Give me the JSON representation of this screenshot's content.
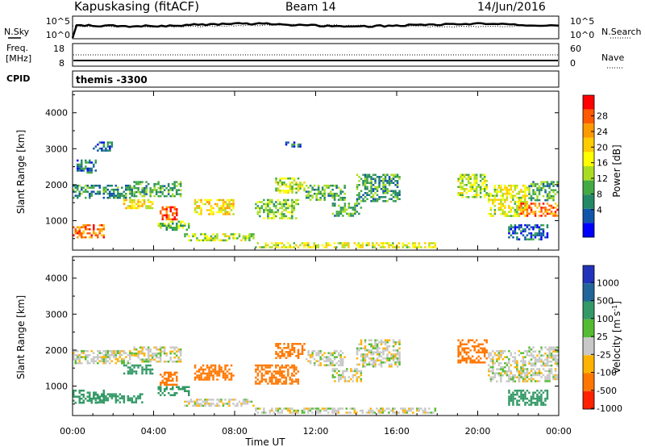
{
  "header": {
    "station": "Kapuskasing (fitACF)",
    "beam": "Beam 14",
    "date": "14/Jun/2016"
  },
  "noise_panel": {
    "left_label": "N.Sky",
    "right_label": "N.Search",
    "left_ticks": [
      "10^5",
      "10^0"
    ],
    "right_ticks": [
      "10^5",
      "10^0"
    ]
  },
  "freq_panel": {
    "left_label_1": "Freq.",
    "left_label_2": "[MHz]",
    "left_ticks": [
      "18",
      "8"
    ],
    "right_label": "Nave",
    "right_ticks": [
      "60",
      "0"
    ]
  },
  "cpid": {
    "label": "CPID",
    "value": "themis -3300"
  },
  "x_axis": {
    "label": "Time UT",
    "ticks": [
      "00:00",
      "04:00",
      "08:00",
      "12:00",
      "16:00",
      "20:00",
      "00:00"
    ]
  },
  "power_colorbar": {
    "label": "Power [dB]",
    "ticks": [
      "28",
      "24",
      "20",
      "16",
      "12",
      "8",
      "4"
    ],
    "colors": [
      "#ff0000",
      "#ff5a00",
      "#ff9900",
      "#ffcc00",
      "#ffff00",
      "#aadd22",
      "#44aa44",
      "#228866",
      "#1155aa",
      "#0000ff"
    ]
  },
  "velocity_colorbar": {
    "label": "Velocity [m s",
    "label_sup": "-1",
    "label_end": "]",
    "ticks": [
      "1000",
      "500",
      "100",
      "25",
      "-25",
      "-100",
      "-500",
      "-1000"
    ],
    "colors": [
      "#2233bb",
      "#226699",
      "#339966",
      "#55bb33",
      "#c8c8c8",
      "#ffb300",
      "#ff7700",
      "#ff2200"
    ]
  },
  "chart_data": [
    {
      "type": "heatmap",
      "title": "",
      "xlabel": "Time UT",
      "ylabel": "Slant Range [km]",
      "xlim": [
        0,
        24
      ],
      "ylim": [
        180,
        4600
      ],
      "yticks": [
        1000,
        2000,
        3000,
        4000
      ],
      "colorbar": "Power [dB]",
      "clim": [
        0,
        30
      ],
      "regions": [
        {
          "t0": 0.0,
          "t1": 1.6,
          "r0": 500,
          "r1": 900,
          "value": 24
        },
        {
          "t0": 0.0,
          "t1": 3.0,
          "r0": 1600,
          "r1": 2000,
          "value": 8
        },
        {
          "t0": 0.2,
          "t1": 1.2,
          "r0": 2300,
          "r1": 2700,
          "value": 6
        },
        {
          "t0": 1.0,
          "t1": 2.0,
          "r0": 2900,
          "r1": 3200,
          "value": 5
        },
        {
          "t0": 2.5,
          "t1": 4.0,
          "r0": 1300,
          "r1": 1600,
          "value": 18
        },
        {
          "t0": 3.0,
          "t1": 5.4,
          "r0": 1600,
          "r1": 2100,
          "value": 10
        },
        {
          "t0": 4.3,
          "t1": 5.2,
          "r0": 1000,
          "r1": 1400,
          "value": 26
        },
        {
          "t0": 4.2,
          "t1": 5.8,
          "r0": 700,
          "r1": 1000,
          "value": 12
        },
        {
          "t0": 6.0,
          "t1": 8.0,
          "r0": 1100,
          "r1": 1600,
          "value": 18
        },
        {
          "t0": 5.5,
          "t1": 9.0,
          "r0": 400,
          "r1": 650,
          "value": 14
        },
        {
          "t0": 9.0,
          "t1": 11.2,
          "r0": 1000,
          "r1": 1600,
          "value": 12
        },
        {
          "t0": 10.0,
          "t1": 11.5,
          "r0": 1700,
          "r1": 2200,
          "value": 14
        },
        {
          "t0": 11.5,
          "t1": 13.5,
          "r0": 1500,
          "r1": 2000,
          "value": 10
        },
        {
          "t0": 12.8,
          "t1": 14.3,
          "r0": 1100,
          "r1": 1500,
          "value": 10
        },
        {
          "t0": 10.5,
          "t1": 11.3,
          "r0": 3000,
          "r1": 3200,
          "value": 6
        },
        {
          "t0": 14.0,
          "t1": 16.2,
          "r0": 1500,
          "r1": 2300,
          "value": 9
        },
        {
          "t0": 9.0,
          "t1": 18.0,
          "r0": 200,
          "r1": 400,
          "value": 16
        },
        {
          "t0": 19.0,
          "t1": 20.5,
          "r0": 1600,
          "r1": 2300,
          "value": 14
        },
        {
          "t0": 20.5,
          "t1": 22.5,
          "r0": 1100,
          "r1": 2000,
          "value": 16
        },
        {
          "t0": 22.0,
          "t1": 24.0,
          "r0": 1100,
          "r1": 1500,
          "value": 24
        },
        {
          "t0": 22.5,
          "t1": 24.0,
          "r0": 1500,
          "r1": 2100,
          "value": 10
        },
        {
          "t0": 21.5,
          "t1": 23.5,
          "r0": 400,
          "r1": 900,
          "value": 5
        }
      ]
    },
    {
      "type": "heatmap",
      "title": "",
      "xlabel": "Time UT",
      "ylabel": "Slant Range [km]",
      "xlim": [
        0,
        24
      ],
      "ylim": [
        180,
        4600
      ],
      "yticks": [
        1000,
        2000,
        3000,
        4000
      ],
      "colorbar": "Velocity [m s^-1]",
      "clim": [
        -1000,
        1000
      ],
      "regions": [
        {
          "t0": 0.0,
          "t1": 1.6,
          "r0": 500,
          "r1": 900,
          "value": 150
        },
        {
          "t0": 0.0,
          "t1": 3.0,
          "r0": 1600,
          "r1": 2000,
          "value": 0
        },
        {
          "t0": 1.0,
          "t1": 3.5,
          "r0": 500,
          "r1": 800,
          "value": 150
        },
        {
          "t0": 2.5,
          "t1": 4.0,
          "r0": 1300,
          "r1": 1600,
          "value": 150
        },
        {
          "t0": 3.0,
          "t1": 5.4,
          "r0": 1600,
          "r1": 2100,
          "value": 0
        },
        {
          "t0": 4.3,
          "t1": 5.2,
          "r0": 1000,
          "r1": 1400,
          "value": -200
        },
        {
          "t0": 4.2,
          "t1": 5.8,
          "r0": 700,
          "r1": 1000,
          "value": 150
        },
        {
          "t0": 6.0,
          "t1": 8.0,
          "r0": 1100,
          "r1": 1600,
          "value": -300
        },
        {
          "t0": 5.5,
          "t1": 9.0,
          "r0": 400,
          "r1": 650,
          "value": 0
        },
        {
          "t0": 9.0,
          "t1": 11.2,
          "r0": 1000,
          "r1": 1600,
          "value": -350
        },
        {
          "t0": 10.0,
          "t1": 11.5,
          "r0": 1700,
          "r1": 2200,
          "value": -250
        },
        {
          "t0": 11.5,
          "t1": 13.5,
          "r0": 1500,
          "r1": 2000,
          "value": 0
        },
        {
          "t0": 12.8,
          "t1": 14.3,
          "r0": 1100,
          "r1": 1500,
          "value": 0
        },
        {
          "t0": 14.0,
          "t1": 16.2,
          "r0": 1500,
          "r1": 2300,
          "value": 0
        },
        {
          "t0": 9.0,
          "t1": 18.0,
          "r0": 200,
          "r1": 400,
          "value": 0
        },
        {
          "t0": 19.0,
          "t1": 20.5,
          "r0": 1600,
          "r1": 2300,
          "value": -400
        },
        {
          "t0": 20.5,
          "t1": 22.5,
          "r0": 1100,
          "r1": 2000,
          "value": 0
        },
        {
          "t0": 22.0,
          "t1": 24.0,
          "r0": 1100,
          "r1": 1500,
          "value": 0
        },
        {
          "t0": 22.5,
          "t1": 24.0,
          "r0": 1500,
          "r1": 2100,
          "value": 0
        },
        {
          "t0": 21.5,
          "t1": 23.5,
          "r0": 400,
          "r1": 900,
          "value": 150
        }
      ]
    }
  ]
}
